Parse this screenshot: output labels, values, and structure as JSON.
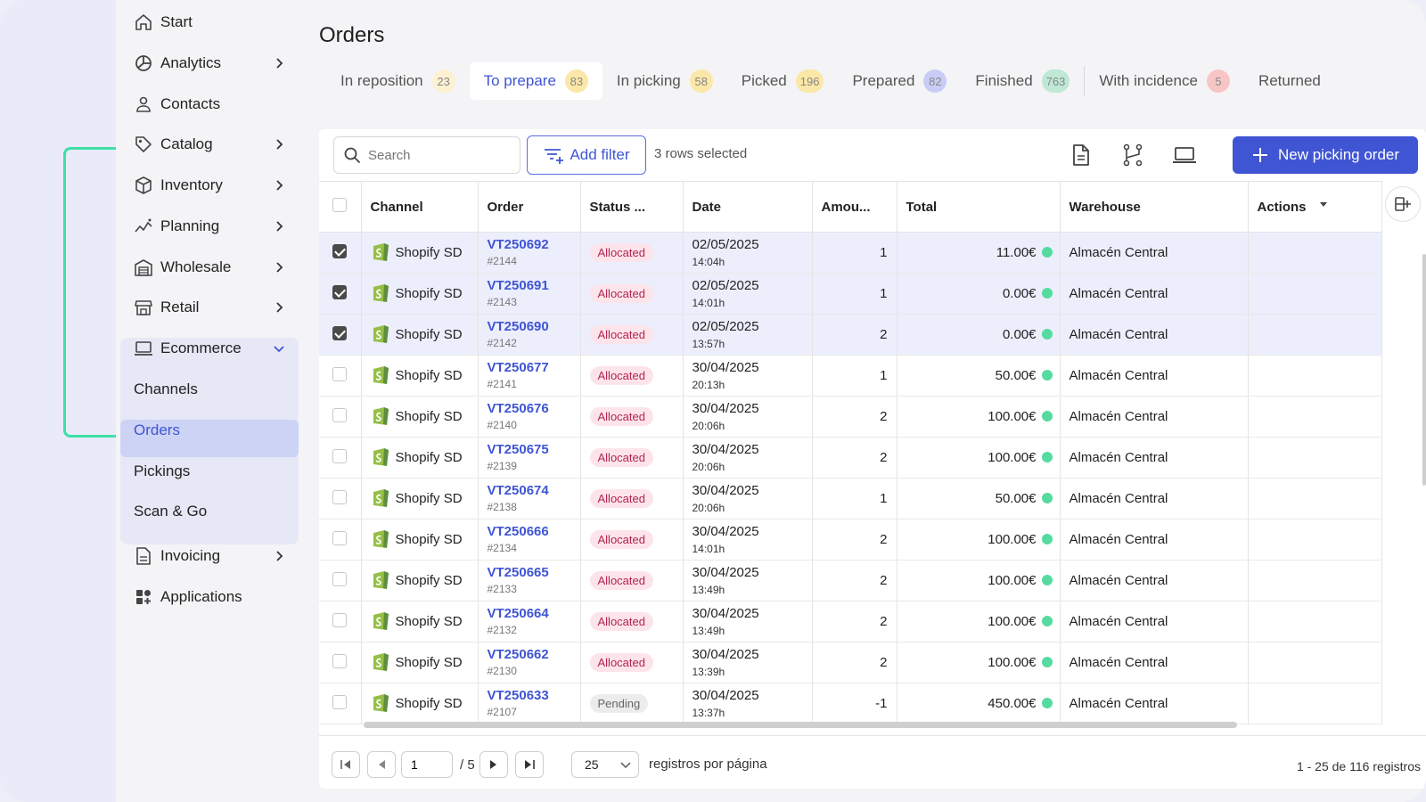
{
  "sidebar": {
    "items": [
      {
        "label": "Start",
        "icon": "home-icon",
        "chevron": false
      },
      {
        "label": "Analytics",
        "icon": "analytics-icon",
        "chevron": true
      },
      {
        "label": "Contacts",
        "icon": "user-icon",
        "chevron": false
      },
      {
        "label": "Catalog",
        "icon": "tag-icon",
        "chevron": true
      },
      {
        "label": "Inventory",
        "icon": "box-icon",
        "chevron": true
      },
      {
        "label": "Planning",
        "icon": "planning-icon",
        "chevron": true
      },
      {
        "label": "Wholesale",
        "icon": "warehouse-icon",
        "chevron": true
      },
      {
        "label": "Retail",
        "icon": "store-icon",
        "chevron": true
      },
      {
        "label": "Ecommerce",
        "icon": "laptop-icon",
        "chevron": "down"
      },
      {
        "label": "Invoicing",
        "icon": "document-icon",
        "chevron": true
      },
      {
        "label": "Applications",
        "icon": "apps-icon",
        "chevron": false
      }
    ],
    "ecommerce_sub": [
      "Channels",
      "Orders",
      "Pickings",
      "Scan & Go"
    ],
    "active_sub": "Orders",
    "accent": "#3f55d4"
  },
  "page": {
    "title": "Orders"
  },
  "tabs": [
    {
      "label": "In reposition",
      "count": "23",
      "color": "#fdf1d2",
      "active": false
    },
    {
      "label": "To prepare",
      "count": "83",
      "color": "#fbe7a8",
      "active": true
    },
    {
      "label": "In picking",
      "count": "58",
      "color": "#fbe7a8",
      "active": false
    },
    {
      "label": "Picked",
      "count": "196",
      "color": "#fbe7a8",
      "active": false
    },
    {
      "label": "Prepared",
      "count": "82",
      "color": "#c9cdf6",
      "active": false
    },
    {
      "label": "Finished",
      "count": "763",
      "color": "#bfe8d5",
      "active": false
    },
    {
      "label": "With incidence",
      "count": "5",
      "color": "#f8c5c5",
      "active": false
    },
    {
      "label": "Returned",
      "count": "",
      "color": "",
      "active": false
    }
  ],
  "toolbar": {
    "search_placeholder": "Search",
    "add_filter": "Add filter",
    "selection_info": "3 rows selected",
    "new_button": "New picking order"
  },
  "table": {
    "columns": [
      "Channel",
      "Order",
      "Status ...",
      "Date",
      "Amou...",
      "Total",
      "Warehouse",
      "Actions"
    ],
    "rows": [
      {
        "selected": true,
        "channel": "Shopify SD",
        "order": "VT250692",
        "ref": "#2144",
        "status": "Allocated",
        "date": "02/05/2025",
        "time": "14:04h",
        "amount": "1",
        "total": "11.00€",
        "warehouse": "Almacén Central"
      },
      {
        "selected": true,
        "channel": "Shopify SD",
        "order": "VT250691",
        "ref": "#2143",
        "status": "Allocated",
        "date": "02/05/2025",
        "time": "14:01h",
        "amount": "1",
        "total": "0.00€",
        "warehouse": "Almacén Central"
      },
      {
        "selected": true,
        "channel": "Shopify SD",
        "order": "VT250690",
        "ref": "#2142",
        "status": "Allocated",
        "date": "02/05/2025",
        "time": "13:57h",
        "amount": "2",
        "total": "0.00€",
        "warehouse": "Almacén Central"
      },
      {
        "selected": false,
        "channel": "Shopify SD",
        "order": "VT250677",
        "ref": "#2141",
        "status": "Allocated",
        "date": "30/04/2025",
        "time": "20:13h",
        "amount": "1",
        "total": "50.00€",
        "warehouse": "Almacén Central"
      },
      {
        "selected": false,
        "channel": "Shopify SD",
        "order": "VT250676",
        "ref": "#2140",
        "status": "Allocated",
        "date": "30/04/2025",
        "time": "20:06h",
        "amount": "2",
        "total": "100.00€",
        "warehouse": "Almacén Central"
      },
      {
        "selected": false,
        "channel": "Shopify SD",
        "order": "VT250675",
        "ref": "#2139",
        "status": "Allocated",
        "date": "30/04/2025",
        "time": "20:06h",
        "amount": "2",
        "total": "100.00€",
        "warehouse": "Almacén Central"
      },
      {
        "selected": false,
        "channel": "Shopify SD",
        "order": "VT250674",
        "ref": "#2138",
        "status": "Allocated",
        "date": "30/04/2025",
        "time": "20:06h",
        "amount": "1",
        "total": "50.00€",
        "warehouse": "Almacén Central"
      },
      {
        "selected": false,
        "channel": "Shopify SD",
        "order": "VT250666",
        "ref": "#2134",
        "status": "Allocated",
        "date": "30/04/2025",
        "time": "14:01h",
        "amount": "2",
        "total": "100.00€",
        "warehouse": "Almacén Central"
      },
      {
        "selected": false,
        "channel": "Shopify SD",
        "order": "VT250665",
        "ref": "#2133",
        "status": "Allocated",
        "date": "30/04/2025",
        "time": "13:49h",
        "amount": "2",
        "total": "100.00€",
        "warehouse": "Almacén Central"
      },
      {
        "selected": false,
        "channel": "Shopify SD",
        "order": "VT250664",
        "ref": "#2132",
        "status": "Allocated",
        "date": "30/04/2025",
        "time": "13:49h",
        "amount": "2",
        "total": "100.00€",
        "warehouse": "Almacén Central"
      },
      {
        "selected": false,
        "channel": "Shopify SD",
        "order": "VT250662",
        "ref": "#2130",
        "status": "Allocated",
        "date": "30/04/2025",
        "time": "13:39h",
        "amount": "2",
        "total": "100.00€",
        "warehouse": "Almacén Central"
      },
      {
        "selected": false,
        "channel": "Shopify SD",
        "order": "VT250633",
        "ref": "#2107",
        "status": "Pending",
        "date": "30/04/2025",
        "time": "13:37h",
        "amount": "-1",
        "total": "450.00€",
        "warehouse": "Almacén Central"
      }
    ]
  },
  "pagination": {
    "current_page": "1",
    "total_pages": "/ 5",
    "page_size": "25",
    "page_size_label": "registros por página",
    "range": "1 - 25 de 116 registros"
  }
}
